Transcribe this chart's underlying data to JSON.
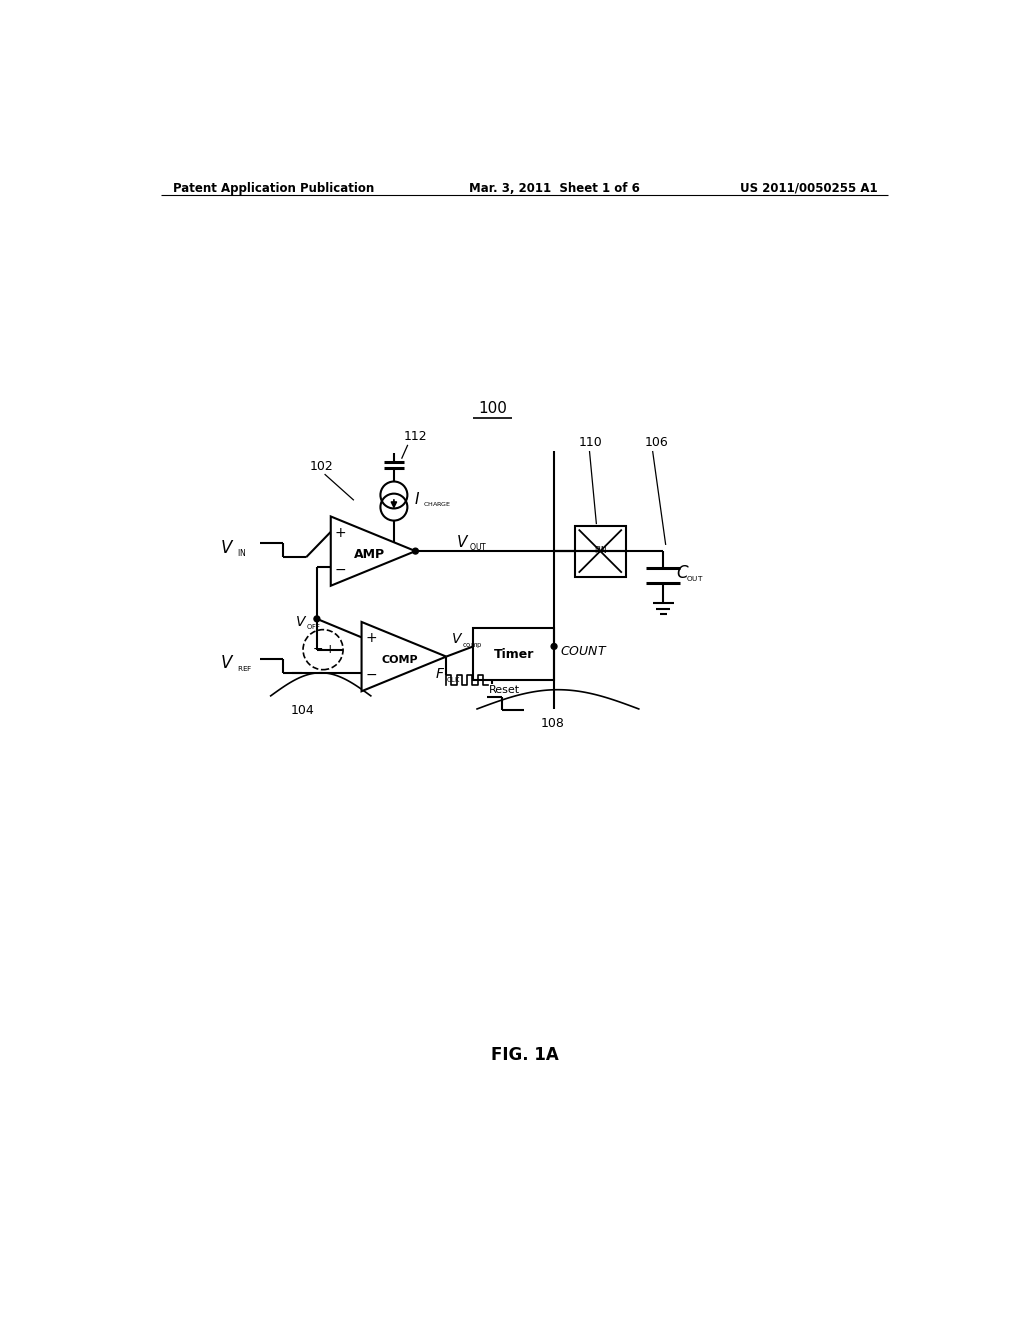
{
  "bg_color": "#ffffff",
  "header_left": "Patent Application Publication",
  "header_mid": "Mar. 3, 2011  Sheet 1 of 6",
  "header_right": "US 2011/0050255 A1",
  "fig_label": "FIG. 1A",
  "diagram_label": "100"
}
